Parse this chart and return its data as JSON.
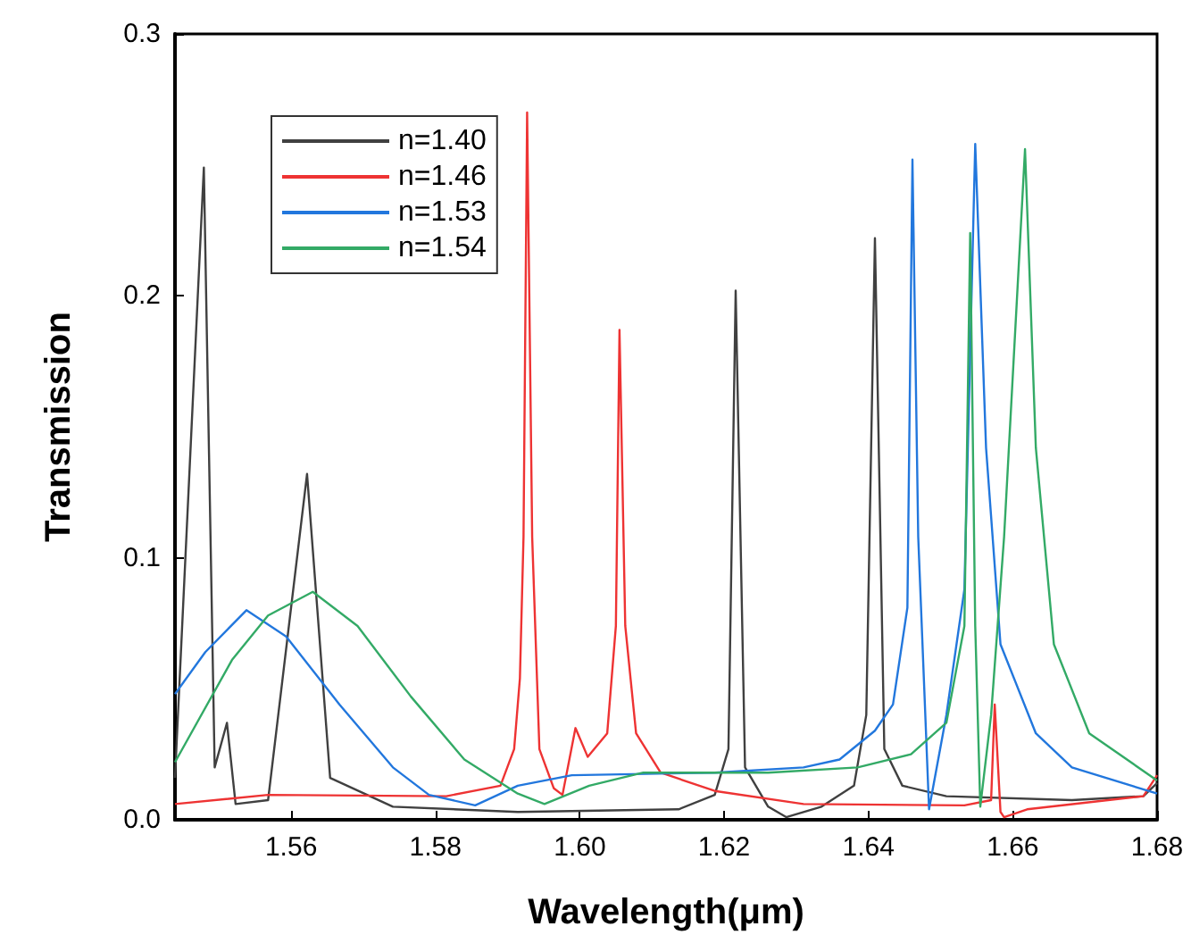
{
  "chart_data": {
    "type": "line",
    "xlabel": "Wavelength(μm)",
    "ylabel": "Transmission",
    "xlim": [
      1.5439,
      1.68
    ],
    "xticks": [
      {
        "value": 1.56,
        "label": "1.56"
      },
      {
        "value": 1.58,
        "label": "1.58"
      },
      {
        "value": 1.6,
        "label": "1.60"
      },
      {
        "value": 1.62,
        "label": "1.62"
      },
      {
        "value": 1.64,
        "label": "1.64"
      },
      {
        "value": 1.66,
        "label": "1.66"
      },
      {
        "value": 1.68,
        "label": "1.68"
      }
    ],
    "ylim": [
      0,
      0.3
    ],
    "yticks": [
      {
        "value": 0,
        "label": "0.0"
      },
      {
        "value": 0.1,
        "label": "0.1"
      },
      {
        "value": 0.2,
        "label": "0.2"
      },
      {
        "value": 0.3,
        "label": "0.3"
      }
    ],
    "grid": false,
    "legend": "top left",
    "marker": "none",
    "line_style": "solid",
    "series": [
      {
        "name": "n=1.40",
        "color": "#404040",
        "x": [
          1.5439,
          1.5479,
          1.5494,
          1.5511,
          1.5523,
          1.5568,
          1.5622,
          1.5654,
          1.5741,
          1.5914,
          1.6137,
          1.6187,
          1.6206,
          1.6216,
          1.6229,
          1.6261,
          1.6286,
          1.6335,
          1.638,
          1.6397,
          1.6409,
          1.6422,
          1.6447,
          1.6508,
          1.6682,
          1.6781,
          1.68
        ],
        "values": [
          0.016,
          0.249,
          0.02,
          0.037,
          0.006,
          0.0075,
          0.132,
          0.016,
          0.005,
          0.003,
          0.004,
          0.0095,
          0.027,
          0.202,
          0.02,
          0.005,
          0.001,
          0.005,
          0.013,
          0.04,
          0.222,
          0.027,
          0.013,
          0.009,
          0.0075,
          0.009,
          0.014
        ]
      },
      {
        "name": "n=1.46",
        "color": "#ee3333",
        "x": [
          1.5439,
          1.5568,
          1.5815,
          1.589,
          1.5909,
          1.5917,
          1.5922,
          1.5927,
          1.5934,
          1.5944,
          1.5964,
          1.5976,
          1.5994,
          1.6011,
          1.6038,
          1.605,
          1.6055,
          1.6063,
          1.6078,
          1.6112,
          1.6187,
          1.631,
          1.6533,
          1.657,
          1.6575,
          1.6583,
          1.6588,
          1.662,
          1.6781,
          1.68
        ],
        "values": [
          0.006,
          0.0095,
          0.009,
          0.013,
          0.027,
          0.054,
          0.108,
          0.27,
          0.108,
          0.027,
          0.012,
          0.0095,
          0.035,
          0.024,
          0.033,
          0.074,
          0.187,
          0.074,
          0.033,
          0.018,
          0.011,
          0.006,
          0.0055,
          0.0075,
          0.044,
          0.003,
          0.001,
          0.004,
          0.009,
          0.017
        ]
      },
      {
        "name": "n=1.53",
        "color": "#2277dd",
        "x": [
          1.5439,
          1.5481,
          1.5538,
          1.5593,
          1.5667,
          1.5741,
          1.5791,
          1.5855,
          1.5914,
          1.5989,
          1.6187,
          1.631,
          1.636,
          1.6409,
          1.6434,
          1.6454,
          1.6461,
          1.6469,
          1.6484,
          1.6508,
          1.6533,
          1.6548,
          1.6563,
          1.6583,
          1.6632,
          1.6682,
          1.68
        ],
        "values": [
          0.048,
          0.064,
          0.08,
          0.07,
          0.044,
          0.02,
          0.0095,
          0.0055,
          0.013,
          0.017,
          0.018,
          0.02,
          0.023,
          0.034,
          0.044,
          0.081,
          0.252,
          0.108,
          0.004,
          0.04,
          0.088,
          0.258,
          0.142,
          0.067,
          0.033,
          0.02,
          0.01
        ]
      },
      {
        "name": "n=1.54",
        "color": "#33aa66",
        "x": [
          1.5439,
          1.5518,
          1.5568,
          1.563,
          1.5692,
          1.5766,
          1.584,
          1.5914,
          1.5951,
          1.6013,
          1.6088,
          1.6261,
          1.6385,
          1.6459,
          1.6508,
          1.6533,
          1.6541,
          1.6548,
          1.6555,
          1.657,
          1.6588,
          1.6617,
          1.6632,
          1.6657,
          1.6706,
          1.68
        ],
        "values": [
          0.022,
          0.061,
          0.078,
          0.087,
          0.074,
          0.047,
          0.023,
          0.01,
          0.006,
          0.013,
          0.018,
          0.018,
          0.02,
          0.025,
          0.037,
          0.074,
          0.224,
          0.074,
          0.005,
          0.04,
          0.108,
          0.256,
          0.142,
          0.067,
          0.033,
          0.015
        ]
      }
    ]
  }
}
